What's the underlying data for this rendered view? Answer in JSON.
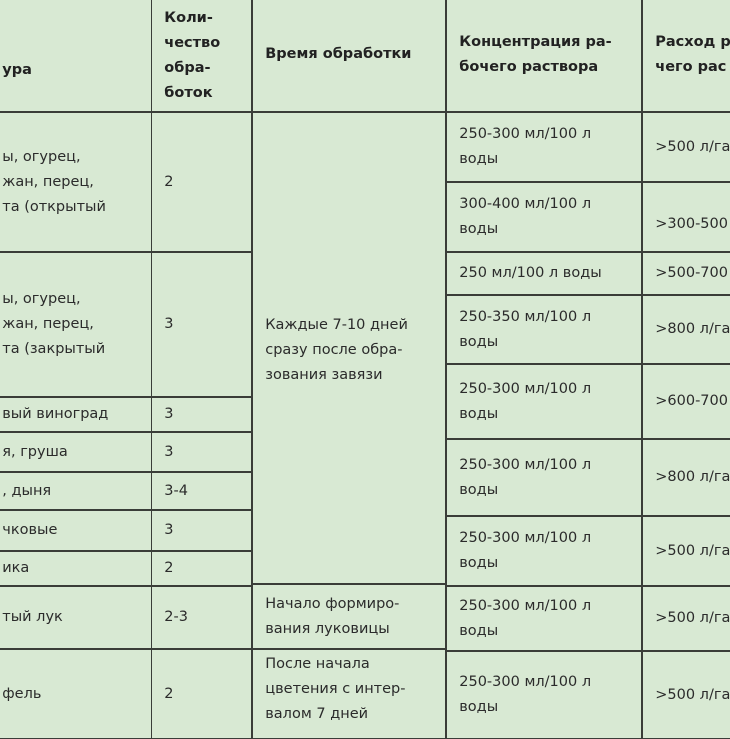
{
  "header": {
    "crop": "ура",
    "count": "Коли-\nчество\nобра-\nботок",
    "time": "Время обработки",
    "concentration": "Концентрация ра-\nбочего раствора",
    "rate": "Расход р\nчего рас"
  },
  "crops": [
    {
      "name": "ы, огурец,\nжан, перец,\nта (открытый",
      "count": "2"
    },
    {
      "name": "ы, огурец,\nжан, перец,\nта (закрытый",
      "count": "3"
    },
    {
      "name": "вый виноград",
      "count": "3"
    },
    {
      "name": "я, груша",
      "count": "3"
    },
    {
      "name": ", дыня",
      "count": "3-4"
    },
    {
      "name": "чковые",
      "count": "3"
    },
    {
      "name": "ика",
      "count": "2"
    },
    {
      "name": "тый лук",
      "count": "2-3"
    },
    {
      "name": "фель",
      "count": "2"
    }
  ],
  "times": [
    "Каждые 7-10 дней\nсразу после обра-\nзования завязи",
    "Начало формиро-\nвания луковицы",
    "После начала\nцветения с интер-\nвалом 7 дней"
  ],
  "doses": [
    {
      "concentration": "250-300 мл/100 л\nводы",
      "rate": ">500 л/га"
    },
    {
      "concentration": "300-400 мл/100 л\nводы",
      "rate": ">300-500"
    },
    {
      "concentration": "250 мл/100 л воды",
      "rate": ">500-700"
    },
    {
      "concentration": "250-350 мл/100 л\nводы",
      "rate": ">800 л/га"
    },
    {
      "concentration": "250-300 мл/100 л\nводы",
      "rate": ">600-700"
    },
    {
      "concentration": "250-300 мл/100 л\nводы",
      "rate": ">800 л/га"
    },
    {
      "concentration": "250-300 мл/100 л\nводы",
      "rate": ">500 л/га"
    },
    {
      "concentration": "250-300 мл/100 л\nводы",
      "rate": ">500 л/га"
    },
    {
      "concentration": "250-300 мл/100 л\nводы",
      "rate": ">500 л/га"
    }
  ]
}
